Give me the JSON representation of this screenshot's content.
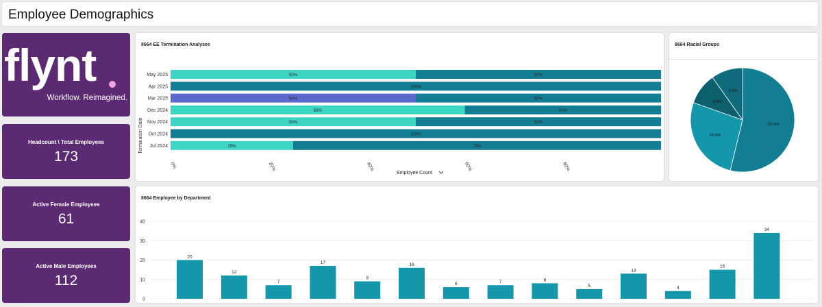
{
  "header": {
    "title": "Employee Demographics"
  },
  "logo": {
    "wordmark": "flynt",
    "tagline": "Workflow. Reimagined."
  },
  "kpis": [
    {
      "label": "Headcount \\ Total Employees",
      "value": "173"
    },
    {
      "label": "Active Female Employees",
      "value": "61"
    },
    {
      "label": "Active Male Employees",
      "value": "112"
    }
  ],
  "colors": {
    "purple": "#5b2a73",
    "teal_light": "#3dd6c3",
    "teal_dark": "#137e93",
    "blue": "#5b68cc",
    "bar": "#1597ab",
    "pink": "#f0a3e0"
  },
  "chart_data": [
    {
      "type": "bar",
      "orientation": "horizontal-stacked-100",
      "title": "8664 EE Termination Analyses",
      "ylabel": "Termination Date",
      "xlabel": "Employee Count",
      "xticks": [
        "0%",
        "20%",
        "40%",
        "60%",
        "80%"
      ],
      "categories": [
        "May 2025",
        "Apr 2025",
        "Mar 2025",
        "Dec 2024",
        "Nov 2024",
        "Oct 2024",
        "Jul 2024"
      ],
      "rows": [
        {
          "segments": [
            {
              "value": 50,
              "label": "50%",
              "color": "#3dd6c3"
            },
            {
              "value": 50,
              "label": "50%",
              "color": "#137e93"
            }
          ]
        },
        {
          "segments": [
            {
              "value": 100,
              "label": "100%",
              "color": "#137e93"
            }
          ]
        },
        {
          "segments": [
            {
              "value": 50,
              "label": "50%",
              "color": "#5b68cc"
            },
            {
              "value": 50,
              "label": "50%",
              "color": "#137e93"
            }
          ]
        },
        {
          "segments": [
            {
              "value": 60,
              "label": "60%",
              "color": "#3dd6c3"
            },
            {
              "value": 40,
              "label": "40%",
              "color": "#137e93"
            }
          ]
        },
        {
          "segments": [
            {
              "value": 50,
              "label": "50%",
              "color": "#3dd6c3"
            },
            {
              "value": 50,
              "label": "50%",
              "color": "#137e93"
            }
          ]
        },
        {
          "segments": [
            {
              "value": 100,
              "label": "100%",
              "color": "#137e93"
            }
          ]
        },
        {
          "segments": [
            {
              "value": 25,
              "label": "25%",
              "color": "#3dd6c3"
            },
            {
              "value": 75,
              "label": "75%",
              "color": "#137e93"
            }
          ]
        }
      ]
    },
    {
      "type": "pie",
      "title": "8664 Racial Groups",
      "slices": [
        {
          "value": 53.8,
          "label": "53.8%",
          "color": "#137e93"
        },
        {
          "value": 26.6,
          "label": "26.6%",
          "color": "#1597ab"
        },
        {
          "value": 9.8,
          "label": "9.8%",
          "color": "#0d5f6e"
        },
        {
          "value": 9.8,
          "label": "9.8%",
          "color": "#0f6c7d"
        }
      ]
    },
    {
      "type": "bar",
      "title": "8664 Employee by Department",
      "values": [
        20,
        12,
        7,
        17,
        9,
        16,
        6,
        7,
        8,
        5,
        13,
        4,
        15,
        34
      ],
      "yticks": [
        "0",
        "10",
        "20",
        "30",
        "40"
      ],
      "ylim": [
        0,
        40
      ],
      "color": "#1597ab"
    }
  ]
}
